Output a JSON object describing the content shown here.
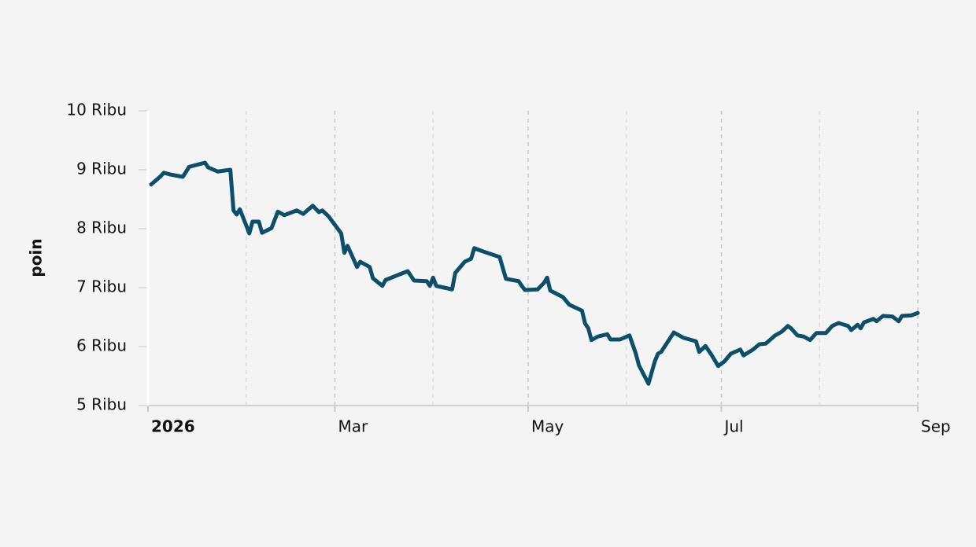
{
  "chart_data": {
    "type": "line",
    "y_label": "poin",
    "x": [
      1,
      4,
      5,
      7,
      11,
      13,
      18,
      19,
      22,
      26,
      27,
      28,
      29,
      32,
      33,
      35,
      36,
      39,
      41,
      43,
      47,
      49,
      52,
      54,
      55,
      57,
      61,
      62,
      63,
      66,
      67,
      70,
      71,
      74,
      75,
      82,
      84,
      88,
      89,
      90,
      91,
      96,
      97,
      100,
      102,
      103,
      106,
      111,
      113,
      117,
      118,
      119,
      123,
      125,
      126,
      127,
      131,
      133,
      137,
      138,
      139,
      140,
      142,
      145,
      146,
      149,
      152,
      154,
      155,
      158,
      160,
      161,
      162,
      166,
      167,
      169,
      173,
      174,
      176,
      178,
      180,
      182,
      184,
      187,
      188,
      191,
      193,
      195,
      198,
      200,
      202,
      203,
      205,
      207,
      209,
      211,
      214,
      216,
      218,
      221,
      222,
      224,
      225,
      226,
      229,
      230,
      232,
      235,
      237,
      238,
      241,
      243
    ],
    "series": [
      {
        "color": "#0d4f6b",
        "values": [
          8750,
          8890,
          8950,
          8920,
          8880,
          9050,
          9120,
          9040,
          8970,
          9000,
          8310,
          8240,
          8330,
          7920,
          8120,
          8120,
          7930,
          8010,
          8290,
          8230,
          8310,
          8250,
          8390,
          8280,
          8310,
          8210,
          7920,
          7590,
          7710,
          7350,
          7440,
          7350,
          7160,
          7030,
          7130,
          7280,
          7120,
          7110,
          7030,
          7170,
          7030,
          6970,
          7250,
          7440,
          7490,
          7670,
          7610,
          7520,
          7150,
          7110,
          7030,
          6960,
          6970,
          7080,
          7170,
          6950,
          6840,
          6710,
          6610,
          6390,
          6310,
          6110,
          6170,
          6210,
          6120,
          6120,
          6190,
          5880,
          5680,
          5370,
          5750,
          5880,
          5910,
          6240,
          6210,
          6150,
          6090,
          5910,
          6010,
          5850,
          5670,
          5750,
          5880,
          5950,
          5850,
          5950,
          6040,
          6050,
          6190,
          6250,
          6350,
          6310,
          6190,
          6170,
          6110,
          6230,
          6230,
          6350,
          6400,
          6350,
          6280,
          6370,
          6310,
          6410,
          6470,
          6430,
          6520,
          6510,
          6430,
          6520,
          6530,
          6570
        ]
      }
    ],
    "xlim": [
      0,
      243
    ],
    "xticks": [
      {
        "value": 0,
        "label": "2026"
      },
      {
        "value": 59,
        "label": "Mar"
      },
      {
        "value": 120,
        "label": "May"
      },
      {
        "value": 181,
        "label": "Jul"
      },
      {
        "value": 243,
        "label": "Sep"
      }
    ],
    "xminor": [
      31,
      90,
      151,
      212
    ],
    "ylim": [
      5000,
      10000
    ],
    "yticks": [
      {
        "value": 5000,
        "label": "5 Ribu"
      },
      {
        "value": 6000,
        "label": "6 Ribu"
      },
      {
        "value": 7000,
        "label": "7 Ribu"
      },
      {
        "value": 8000,
        "label": "8 Ribu"
      },
      {
        "value": 9000,
        "label": "9 Ribu"
      },
      {
        "value": 10000,
        "label": "10 Ribu"
      }
    ],
    "grid": true
  }
}
